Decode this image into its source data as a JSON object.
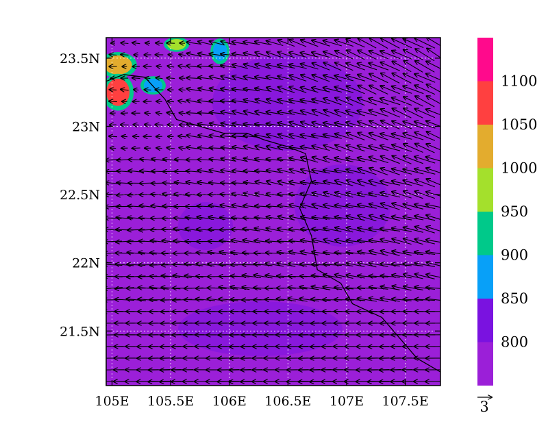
{
  "map": {
    "lon_range": [
      104.95,
      107.8
    ],
    "lat_range": [
      21.1,
      23.65
    ],
    "lon_ticks": [
      {
        "value": 105.0,
        "label": "105E"
      },
      {
        "value": 105.5,
        "label": "105.5E"
      },
      {
        "value": 106.0,
        "label": "106E"
      },
      {
        "value": 106.5,
        "label": "106.5E"
      },
      {
        "value": 107.0,
        "label": "107E"
      },
      {
        "value": 107.5,
        "label": "107.5E"
      }
    ],
    "lat_ticks": [
      {
        "value": 21.5,
        "label": "21.5N"
      },
      {
        "value": 22.0,
        "label": "22N"
      },
      {
        "value": 22.5,
        "label": "22.5N"
      },
      {
        "value": 23.0,
        "label": "23N"
      },
      {
        "value": 23.5,
        "label": "23.5N"
      }
    ],
    "gridlines": true,
    "background_color": "#9b1fd8"
  },
  "colorbar": {
    "labels": [
      "800",
      "850",
      "900",
      "950",
      "1000",
      "1050",
      "1100"
    ],
    "colors": [
      "#9b1fd8",
      "#7a12e0",
      "#08a0f8",
      "#00c98a",
      "#a4e02c",
      "#e3ac2e",
      "#ff4040",
      "#ff0a8c"
    ]
  },
  "reference_vector": {
    "label": "3"
  },
  "high_value_areas": [
    {
      "center": [
        105.05,
        23.45
      ],
      "radius": [
        0.12,
        0.07
      ],
      "level": "1050",
      "color": "#e3ac2e"
    },
    {
      "center": [
        105.05,
        23.25
      ],
      "radius": [
        0.1,
        0.1
      ],
      "level": "1100",
      "color": "#ff4040"
    },
    {
      "center": [
        105.35,
        23.3
      ],
      "radius": [
        0.08,
        0.05
      ],
      "level": "900",
      "color": "#08a0f8"
    },
    {
      "center": [
        105.55,
        23.6
      ],
      "radius": [
        0.08,
        0.04
      ],
      "level": "950",
      "color": "#a4e02c"
    },
    {
      "center": [
        105.92,
        23.55
      ],
      "radius": [
        0.06,
        0.07
      ],
      "level": "900",
      "color": "#08a0f8"
    }
  ],
  "border_path": [
    [
      104.95,
      23.33
    ],
    [
      105.1,
      23.38
    ],
    [
      105.28,
      23.36
    ],
    [
      105.45,
      23.2
    ],
    [
      105.55,
      23.05
    ],
    [
      105.75,
      23.0
    ],
    [
      105.95,
      22.95
    ],
    [
      106.15,
      22.95
    ],
    [
      106.3,
      22.9
    ],
    [
      106.5,
      22.85
    ],
    [
      106.65,
      22.8
    ],
    [
      106.7,
      22.6
    ],
    [
      106.6,
      22.4
    ],
    [
      106.7,
      22.2
    ],
    [
      106.75,
      21.95
    ],
    [
      106.95,
      21.85
    ],
    [
      107.05,
      21.7
    ],
    [
      107.3,
      21.6
    ],
    [
      107.45,
      21.45
    ],
    [
      107.6,
      21.3
    ],
    [
      107.8,
      21.2
    ]
  ]
}
